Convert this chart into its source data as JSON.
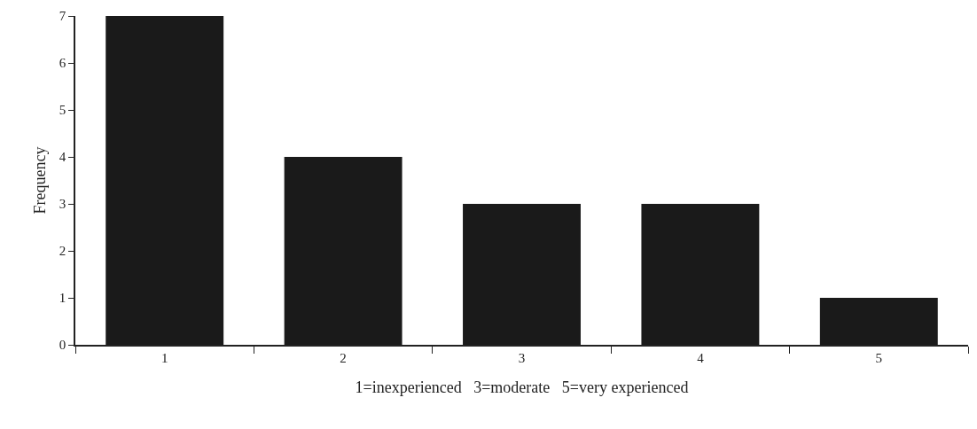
{
  "chart_data": {
    "type": "bar",
    "xlabel": "1=inexperienced   3=moderate   5=very experienced",
    "ylabel": "Frequency",
    "categories": [
      "1",
      "2",
      "3",
      "4",
      "5"
    ],
    "values": [
      7,
      4,
      3,
      3,
      1
    ],
    "color": "#1a1a1a",
    "ylim": [
      0,
      7
    ],
    "yticks": [
      0,
      1,
      2,
      3,
      4,
      5,
      6,
      7
    ]
  }
}
